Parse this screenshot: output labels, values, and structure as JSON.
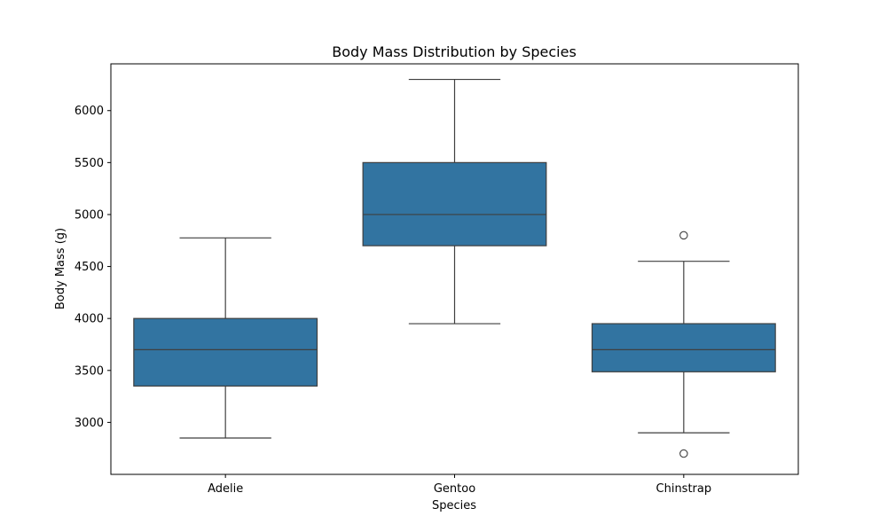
{
  "chart_data": {
    "type": "boxplot",
    "title": "Body Mass Distribution by Species",
    "xlabel": "Species",
    "ylabel": "Body Mass (g)",
    "categories": [
      "Adelie",
      "Gentoo",
      "Chinstrap"
    ],
    "ylim": [
      2500,
      6450
    ],
    "yticks": [
      3000,
      3500,
      4000,
      4500,
      5000,
      5500,
      6000
    ],
    "grid": false,
    "box_color": "#3274a1",
    "line_color": "#3f3f3f",
    "boxes": [
      {
        "category": "Adelie",
        "whisker_low": 2850,
        "q1": 3350,
        "median": 3700,
        "q3": 4000,
        "whisker_high": 4775,
        "outliers": []
      },
      {
        "category": "Gentoo",
        "whisker_low": 3950,
        "q1": 4700,
        "median": 5000,
        "q3": 5500,
        "whisker_high": 6300,
        "outliers": []
      },
      {
        "category": "Chinstrap",
        "whisker_low": 2900,
        "q1": 3487,
        "median": 3700,
        "q3": 3950,
        "whisker_high": 4550,
        "outliers": [
          4800,
          2700
        ]
      }
    ]
  }
}
